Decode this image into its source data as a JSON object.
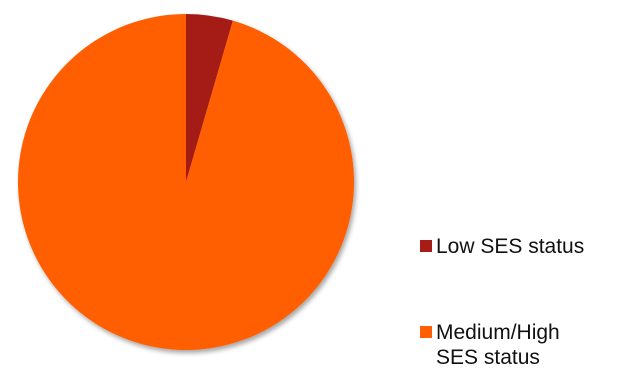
{
  "chart_data": {
    "type": "pie",
    "title": "",
    "categories": [
      "Low SES status",
      "Medium/High SES status"
    ],
    "values": [
      4.5,
      95.5
    ],
    "colors": [
      "#a51d16",
      "#ff5f00"
    ],
    "legend_position": "right"
  }
}
